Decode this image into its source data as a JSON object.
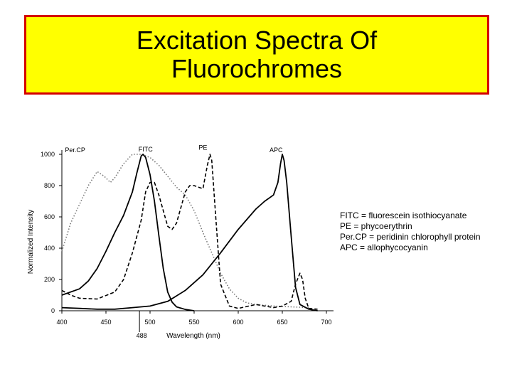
{
  "slide": {
    "title_lines": [
      "Excitation Spectra Of",
      "Fluorochromes"
    ],
    "legend_lines": [
      "FITC = fluorescein isothiocyanate",
      "PE = phycoerythrin",
      "Per.CP = peridinin chlorophyll protein",
      "APC = allophycocyanin"
    ],
    "colors": {
      "title_background": "#ffff00",
      "title_border": "#d40000"
    }
  },
  "chart_data": {
    "type": "line",
    "title": "",
    "xlabel": "Wavelength (nm)",
    "ylabel": "Normalized Intensity",
    "xlim": [
      400,
      700
    ],
    "ylim": [
      0,
      1000
    ],
    "x_ticks": [
      400,
      450,
      500,
      550,
      600,
      650,
      700
    ],
    "y_ticks": [
      0,
      200,
      400,
      600,
      800,
      1000
    ],
    "annotations": [
      {
        "text": "488",
        "x": 488
      }
    ],
    "grid": false,
    "series": [
      {
        "name": "Per.CP",
        "style": "dotted",
        "x": [
          400,
          410,
          420,
          430,
          440,
          448,
          455,
          460,
          470,
          480,
          490,
          500,
          510,
          520,
          530,
          540,
          550,
          560,
          570,
          580,
          590,
          600,
          610,
          620,
          640,
          660,
          680
        ],
        "y": [
          380,
          560,
          680,
          800,
          890,
          860,
          820,
          850,
          940,
          1000,
          1000,
          980,
          930,
          860,
          790,
          740,
          640,
          500,
          370,
          240,
          140,
          80,
          50,
          40,
          30,
          25,
          20
        ]
      },
      {
        "name": "FITC",
        "style": "solid",
        "x": [
          400,
          420,
          430,
          440,
          450,
          460,
          470,
          480,
          485,
          490,
          492,
          495,
          500,
          505,
          510,
          515,
          520,
          525,
          530,
          540,
          550
        ],
        "y": [
          100,
          140,
          190,
          270,
          380,
          500,
          610,
          760,
          880,
          990,
          1000,
          980,
          870,
          700,
          480,
          270,
          120,
          55,
          25,
          8,
          0
        ]
      },
      {
        "name": "PE",
        "style": "dashed",
        "x": [
          400,
          410,
          420,
          440,
          460,
          470,
          480,
          490,
          495,
          500,
          505,
          510,
          520,
          525,
          530,
          540,
          545,
          550,
          555,
          560,
          565,
          568,
          570,
          575,
          580,
          590,
          600,
          620,
          640,
          650,
          660,
          665,
          670,
          673,
          676,
          680,
          690
        ],
        "y": [
          130,
          100,
          80,
          75,
          120,
          200,
          370,
          580,
          760,
          820,
          820,
          740,
          540,
          520,
          560,
          760,
          800,
          800,
          790,
          780,
          930,
          1000,
          960,
          560,
          170,
          30,
          15,
          40,
          20,
          30,
          60,
          170,
          240,
          200,
          80,
          15,
          10
        ]
      },
      {
        "name": "APC",
        "style": "solid",
        "x": [
          400,
          420,
          440,
          460,
          480,
          500,
          520,
          540,
          560,
          580,
          600,
          620,
          630,
          640,
          645,
          648,
          650,
          652,
          655,
          660,
          665,
          670,
          680,
          690
        ],
        "y": [
          20,
          15,
          10,
          10,
          20,
          30,
          60,
          130,
          230,
          370,
          520,
          650,
          700,
          740,
          820,
          940,
          1000,
          960,
          820,
          480,
          150,
          40,
          10,
          0
        ]
      }
    ],
    "labels": [
      {
        "text": "Per.CP",
        "x": 415,
        "y": 1005
      },
      {
        "text": "FITC",
        "x": 495,
        "y": 1010
      },
      {
        "text": "PE",
        "x": 560,
        "y": 1020
      },
      {
        "text": "APC",
        "x": 643,
        "y": 1005
      }
    ]
  }
}
